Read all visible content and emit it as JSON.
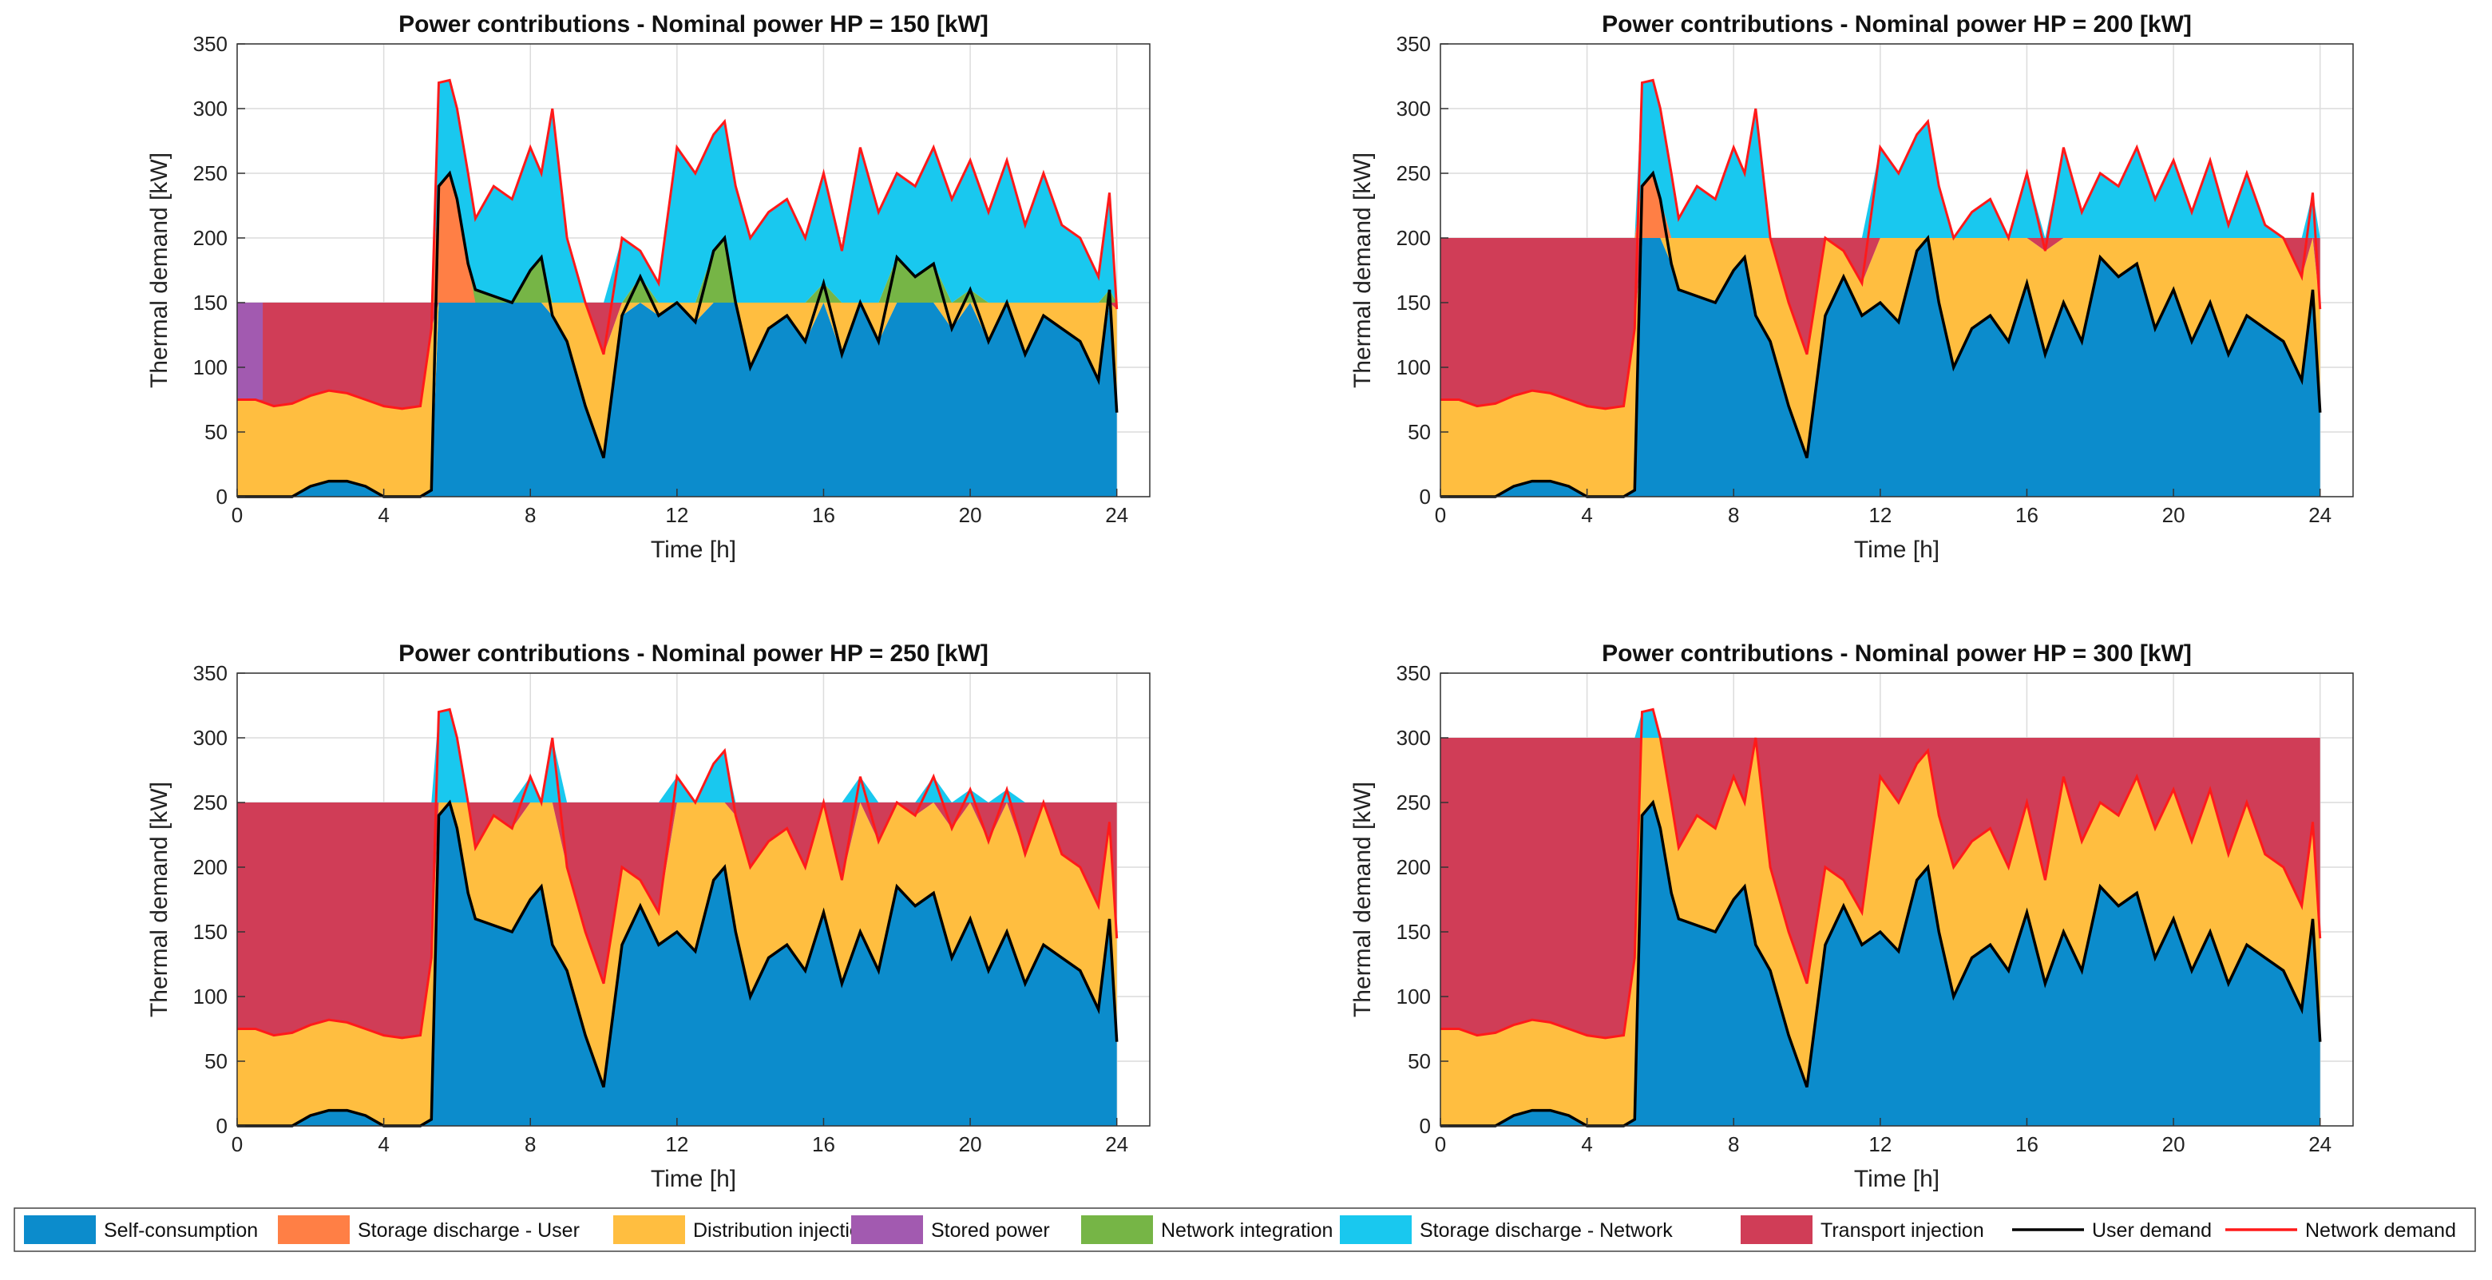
{
  "colors": {
    "self": "#0c8ccc",
    "storage_user": "#ff7f45",
    "distribution": "#ffbe40",
    "stored": "#a25ab0",
    "network_int": "#76b546",
    "storage_net": "#19c8ef",
    "transport": "#d03d57",
    "user_line": "#000000",
    "network_line": "#ff1a1a",
    "grid": "#dcdcdc"
  },
  "chart_data": [
    {
      "type": "area",
      "title": "Power contributions - Nominal power HP = 150 [kW]",
      "xlabel": "Time [h]",
      "ylabel": "Thermal demand [kW]",
      "xlim": [
        0,
        24.9
      ],
      "ylim": [
        0,
        350
      ],
      "xticks": [
        0,
        4,
        8,
        12,
        16,
        20,
        24
      ],
      "yticks": [
        0,
        50,
        100,
        150,
        200,
        250,
        300,
        350
      ],
      "grid": true,
      "hp_nominal": 150
    },
    {
      "type": "area",
      "title": "Power contributions - Nominal power HP = 200 [kW]",
      "xlabel": "Time [h]",
      "ylabel": "Thermal demand [kW]",
      "xlim": [
        0,
        24.9
      ],
      "ylim": [
        0,
        350
      ],
      "xticks": [
        0,
        4,
        8,
        12,
        16,
        20,
        24
      ],
      "yticks": [
        0,
        50,
        100,
        150,
        200,
        250,
        300,
        350
      ],
      "grid": true,
      "hp_nominal": 200
    },
    {
      "type": "area",
      "title": "Power contributions - Nominal power HP = 250 [kW]",
      "xlabel": "Time [h]",
      "ylabel": "Thermal demand [kW]",
      "xlim": [
        0,
        24.9
      ],
      "ylim": [
        0,
        350
      ],
      "xticks": [
        0,
        4,
        8,
        12,
        16,
        20,
        24
      ],
      "yticks": [
        0,
        50,
        100,
        150,
        200,
        250,
        300,
        350
      ],
      "grid": true,
      "hp_nominal": 250
    },
    {
      "type": "area",
      "title": "Power contributions - Nominal power HP = 300 [kW]",
      "xlabel": "Time [h]",
      "ylabel": "Thermal demand [kW]",
      "xlim": [
        0,
        24.9
      ],
      "ylim": [
        0,
        350
      ],
      "xticks": [
        0,
        4,
        8,
        12,
        16,
        20,
        24
      ],
      "yticks": [
        0,
        50,
        100,
        150,
        200,
        250,
        300,
        350
      ],
      "grid": true,
      "hp_nominal": 300
    }
  ],
  "series": {
    "time_h": [
      0,
      0.5,
      1,
      1.5,
      2,
      2.5,
      3,
      3.5,
      4,
      4.5,
      5,
      5.3,
      5.5,
      5.8,
      6,
      6.3,
      6.5,
      7,
      7.5,
      8,
      8.3,
      8.6,
      9,
      9.5,
      10,
      10.5,
      11,
      11.5,
      12,
      12.5,
      13,
      13.3,
      13.6,
      14,
      14.5,
      15,
      15.5,
      16,
      16.5,
      17,
      17.5,
      18,
      18.5,
      19,
      19.5,
      20,
      20.5,
      21,
      21.5,
      22,
      22.5,
      23,
      23.5,
      23.8,
      24
    ],
    "user_demand": [
      0,
      0,
      0,
      0,
      8,
      12,
      12,
      8,
      0,
      0,
      0,
      5,
      240,
      250,
      230,
      180,
      160,
      155,
      150,
      175,
      185,
      140,
      120,
      70,
      30,
      140,
      170,
      140,
      150,
      135,
      190,
      200,
      150,
      100,
      130,
      140,
      120,
      165,
      110,
      150,
      120,
      185,
      170,
      180,
      130,
      160,
      120,
      150,
      110,
      140,
      130,
      120,
      90,
      160,
      65
    ],
    "network_demand": [
      75,
      75,
      70,
      72,
      78,
      82,
      80,
      75,
      70,
      68,
      70,
      130,
      320,
      322,
      300,
      250,
      215,
      240,
      230,
      270,
      250,
      300,
      200,
      150,
      110,
      200,
      190,
      165,
      270,
      250,
      280,
      290,
      240,
      200,
      220,
      230,
      200,
      250,
      190,
      270,
      220,
      250,
      240,
      270,
      230,
      260,
      220,
      260,
      210,
      250,
      210,
      200,
      170,
      235,
      145
    ],
    "legend": [
      {
        "label": "Self-consumption",
        "kind": "patch",
        "color_key": "self"
      },
      {
        "label": "Storage discharge - User",
        "kind": "patch",
        "color_key": "storage_user"
      },
      {
        "label": "Distribution injection",
        "kind": "patch",
        "color_key": "distribution"
      },
      {
        "label": "Stored power",
        "kind": "patch",
        "color_key": "stored"
      },
      {
        "label": "Network integration",
        "kind": "patch",
        "color_key": "network_int"
      },
      {
        "label": "Storage discharge - Network",
        "kind": "patch",
        "color_key": "storage_net"
      },
      {
        "label": "Transport injection",
        "kind": "patch",
        "color_key": "transport"
      },
      {
        "label": "User demand",
        "kind": "line",
        "color_key": "user_line"
      },
      {
        "label": "Network demand",
        "kind": "line",
        "color_key": "network_line"
      }
    ]
  }
}
